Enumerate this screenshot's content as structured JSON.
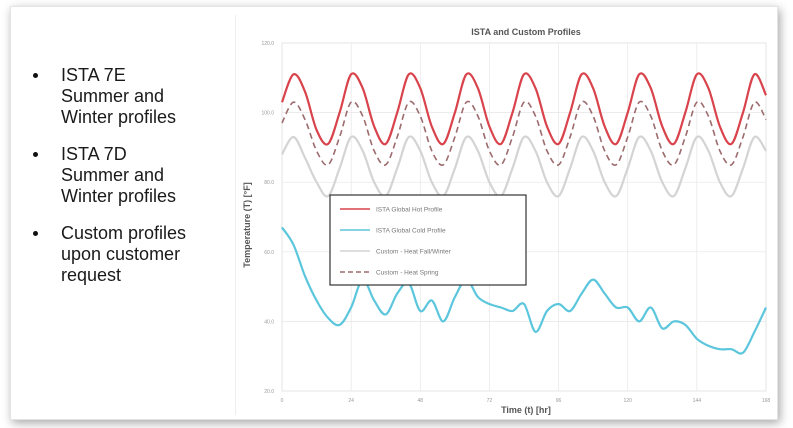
{
  "bullets": [
    {
      "text": "ISTA 7E\nSummer and\nWinter profiles"
    },
    {
      "text": "ISTA 7D\nSummer and\nWinter profiles"
    },
    {
      "text": "Custom profiles\nupon customer\nrequest"
    }
  ],
  "chart_data": {
    "type": "line",
    "title": "ISTA and Custom Profiles",
    "xlabel": "Time (t) [hr]",
    "ylabel": "Temperature (T) [°F]",
    "xlim": [
      0,
      168
    ],
    "ylim": [
      20,
      120
    ],
    "grid": true,
    "legend_position": "center-left",
    "x": [
      0,
      4,
      8,
      12,
      16,
      20,
      24,
      28,
      32,
      36,
      40,
      44,
      48,
      52,
      56,
      60,
      64,
      68,
      72,
      76,
      80,
      84,
      88,
      92,
      96,
      100,
      104,
      108,
      112,
      116,
      120,
      124,
      128,
      132,
      136,
      140,
      144,
      148,
      152,
      156,
      160,
      164,
      168
    ],
    "series": [
      {
        "name": "ISTA Global Hot Profile",
        "color": "#d9434c",
        "dash": "solid",
        "values": [
          103,
          111,
          106,
          95,
          91,
          100,
          111,
          107,
          96,
          91,
          100,
          111,
          107,
          96,
          91,
          100,
          111,
          107,
          96,
          91,
          100,
          111,
          107,
          96,
          91,
          100,
          111,
          107,
          96,
          91,
          100,
          111,
          107,
          96,
          91,
          100,
          111,
          107,
          96,
          91,
          100,
          111,
          105
        ]
      },
      {
        "name": "ISTA Global Cold Profile",
        "color": "#5bc6dc",
        "dash": "solid",
        "values": [
          67,
          62,
          53,
          46,
          41,
          39,
          44,
          52,
          46,
          42,
          48,
          51,
          43,
          46,
          40,
          47,
          52,
          47,
          45,
          44,
          43,
          45,
          37,
          43,
          45,
          43,
          48,
          52,
          48,
          44,
          44,
          40,
          44,
          38,
          40,
          39,
          35,
          33,
          32,
          32,
          31,
          37,
          44
        ]
      },
      {
        "name": "Custom - Heat Fall/Winter",
        "color": "#d4d4d4",
        "dash": "solid",
        "values": [
          88,
          93,
          87,
          80,
          76,
          84,
          93,
          89,
          80,
          76,
          84,
          93,
          89,
          80,
          76,
          84,
          93,
          89,
          80,
          76,
          84,
          93,
          89,
          80,
          76,
          84,
          93,
          89,
          80,
          76,
          84,
          93,
          89,
          80,
          76,
          84,
          93,
          89,
          80,
          76,
          84,
          93,
          89
        ]
      },
      {
        "name": "Custom - Heat Spring",
        "color": "#9c6b6e",
        "dash": "dashed",
        "values": [
          97,
          103,
          98,
          89,
          85,
          93,
          103,
          99,
          89,
          85,
          93,
          103,
          99,
          89,
          85,
          93,
          103,
          99,
          89,
          85,
          93,
          103,
          99,
          89,
          85,
          93,
          103,
          99,
          89,
          85,
          93,
          103,
          99,
          89,
          85,
          93,
          103,
          99,
          89,
          85,
          93,
          103,
          98
        ]
      }
    ]
  }
}
